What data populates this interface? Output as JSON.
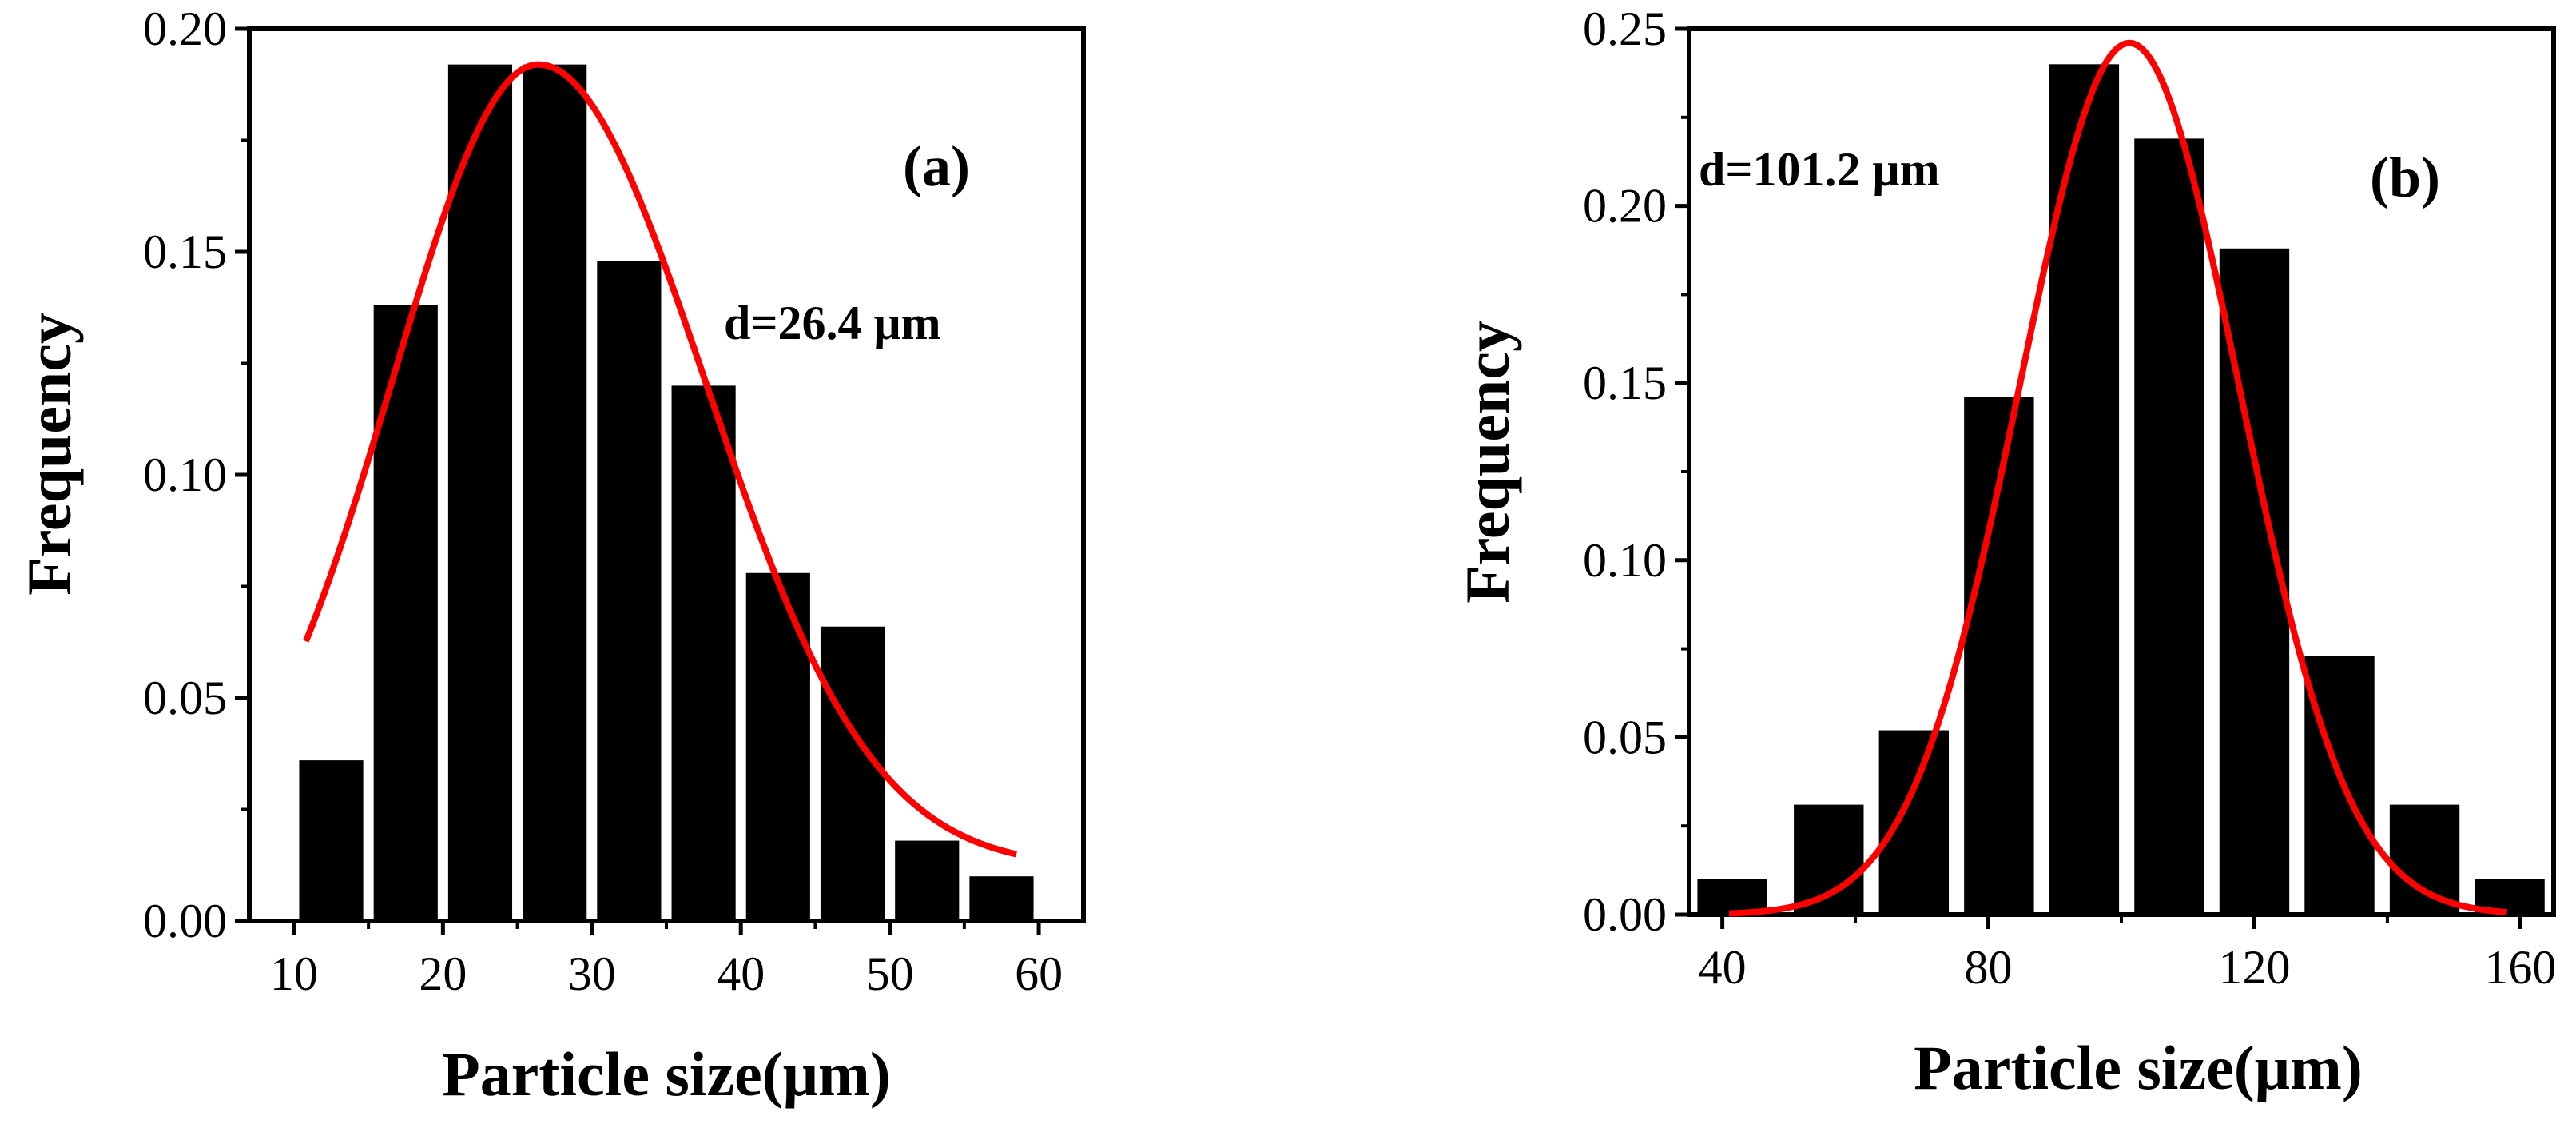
{
  "chart_data": [
    {
      "type": "bar",
      "panel_label": "(a)",
      "annotation": "d=26.4 μm",
      "xlabel": "Particle size(μm)",
      "ylabel": "Frequency",
      "xlim": [
        7,
        63
      ],
      "ylim": [
        0,
        0.2
      ],
      "xticks": [
        10,
        20,
        30,
        40,
        50,
        60
      ],
      "yticks": [
        0.0,
        0.05,
        0.1,
        0.15,
        0.2
      ],
      "ytick_labels": [
        "0.00",
        "0.05",
        "0.10",
        "0.15",
        "0.20"
      ],
      "bin_width": 5,
      "bar_width": 4.3,
      "bar_centers": [
        12.5,
        17.5,
        22.5,
        27.5,
        32.5,
        37.5,
        42.5,
        47.5,
        52.5,
        57.5
      ],
      "values": [
        0.036,
        0.138,
        0.192,
        0.192,
        0.148,
        0.12,
        0.078,
        0.066,
        0.018,
        0.01
      ],
      "fit": {
        "type": "gaussian",
        "mean": 26.4,
        "amplitude": 0.192,
        "sigma_left": 9.8,
        "sigma_right": 11.2,
        "baseline": 0.012,
        "x_range": [
          10.8,
          58.5
        ]
      },
      "fit_color": "#ff0000",
      "bar_color": "#000000"
    },
    {
      "type": "bar",
      "panel_label": "(b)",
      "annotation": "d=101.2 μm",
      "xlabel": "Particle size(μm)",
      "ylabel": "Frequency",
      "xlim": [
        35,
        165
      ],
      "ylim": [
        0,
        0.25
      ],
      "xticks": [
        40,
        80,
        120,
        160
      ],
      "yticks": [
        0.0,
        0.05,
        0.1,
        0.15,
        0.2,
        0.25
      ],
      "ytick_labels": [
        "0.00",
        "0.05",
        "0.10",
        "0.15",
        "0.20",
        "0.25"
      ],
      "bin_width": 12,
      "bar_width": 10.5,
      "bar_centers": [
        41.5,
        56,
        68.8,
        81.6,
        94.4,
        107.2,
        120,
        132.8,
        145.6,
        158.4
      ],
      "values": [
        0.01,
        0.031,
        0.052,
        0.146,
        0.24,
        0.219,
        0.188,
        0.073,
        0.031,
        0.01
      ],
      "fit": {
        "type": "gaussian",
        "mean": 101.2,
        "amplitude": 0.246,
        "sigma_left": 16.5,
        "sigma_right": 16.5,
        "baseline": 0.0,
        "x_range": [
          41,
          158
        ]
      },
      "fit_color": "#ff0000",
      "bar_color": "#000000"
    }
  ]
}
